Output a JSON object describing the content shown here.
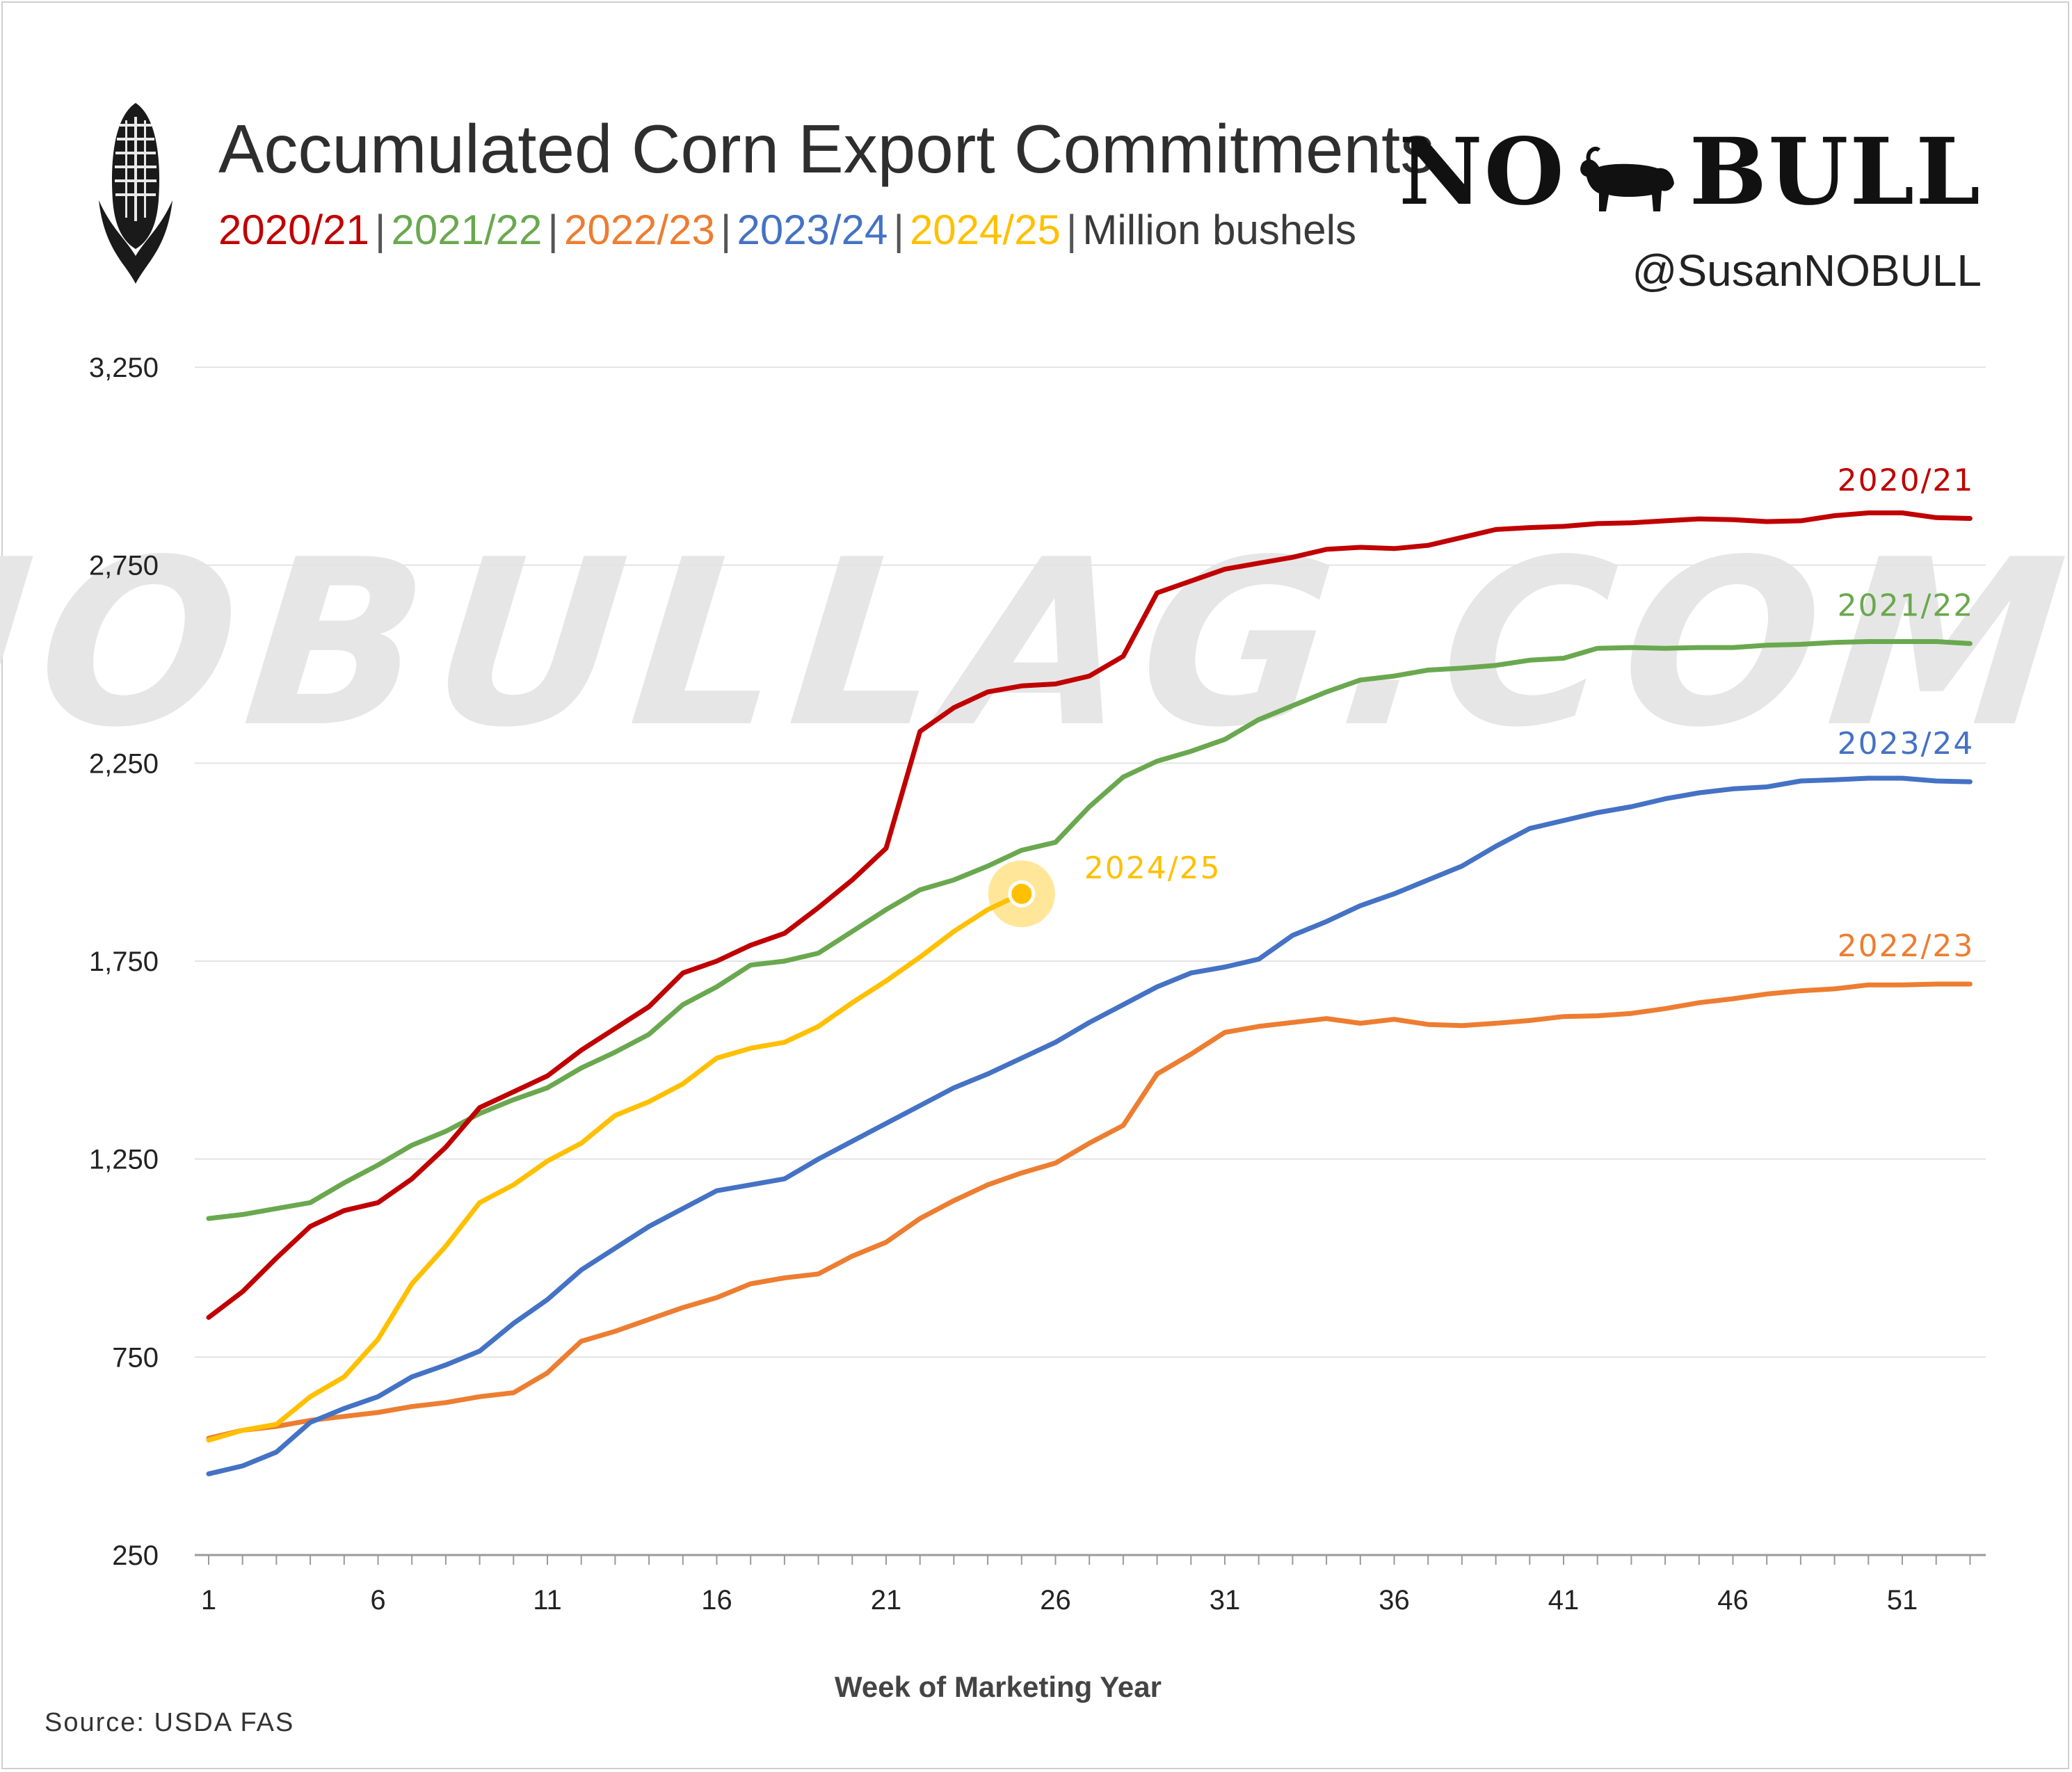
{
  "header": {
    "title": "Accumulated Corn Export Commitments",
    "subtitle_parts": [
      {
        "text": "2020/21",
        "color": "#c00000"
      },
      {
        "text": "2021/22",
        "color": "#6aa84f"
      },
      {
        "text": "2022/23",
        "color": "#ed7d31"
      },
      {
        "text": "2023/24",
        "color": "#4472c4"
      },
      {
        "text": "2024/25",
        "color": "#ffc000"
      }
    ],
    "units": "Million bushels",
    "separator": "|"
  },
  "brand": {
    "logo_text_left": "NO",
    "logo_text_right": "BULL",
    "handle": "@SusanNOBULL",
    "watermark": "NOBULLAG.COM"
  },
  "footer": {
    "source": "Source: USDA FAS"
  },
  "chart_data": {
    "type": "line",
    "xlabel": "Week of Marketing Year",
    "ylabel": "",
    "xlim": [
      1,
      53
    ],
    "ylim": [
      250,
      3250
    ],
    "yticks": [
      250,
      750,
      1250,
      1750,
      2250,
      2750,
      3250
    ],
    "ytick_labels": [
      "250",
      "750",
      "1,250",
      "1,750",
      "2,250",
      "2,750",
      "3,250"
    ],
    "xticks": [
      1,
      6,
      11,
      16,
      21,
      26,
      31,
      36,
      41,
      46,
      51
    ],
    "grid": true,
    "legend": "inline labels at line ends",
    "series": [
      {
        "name": "2020/21",
        "color": "#c00000",
        "label_week": 53,
        "values": [
          850,
          915,
          1000,
          1080,
          1120,
          1140,
          1200,
          1280,
          1380,
          1420,
          1460,
          1525,
          1580,
          1635,
          1720,
          1750,
          1790,
          1820,
          1885,
          1955,
          2035,
          2330,
          2390,
          2430,
          2445,
          2450,
          2470,
          2520,
          2680,
          2710,
          2740,
          2755,
          2770,
          2790,
          2795,
          2792,
          2800,
          2820,
          2840,
          2845,
          2848,
          2855,
          2857,
          2862,
          2867,
          2865,
          2860,
          2862,
          2875,
          2882,
          2882,
          2870,
          2868
        ]
      },
      {
        "name": "2021/22",
        "color": "#6aa84f",
        "label_week": 53,
        "values": [
          1100,
          1110,
          1125,
          1140,
          1190,
          1235,
          1285,
          1320,
          1365,
          1400,
          1430,
          1480,
          1520,
          1565,
          1640,
          1685,
          1740,
          1750,
          1770,
          1825,
          1880,
          1930,
          1955,
          1990,
          2030,
          2050,
          2140,
          2215,
          2255,
          2280,
          2310,
          2360,
          2395,
          2430,
          2460,
          2470,
          2485,
          2490,
          2497,
          2510,
          2515,
          2540,
          2542,
          2540,
          2542,
          2542,
          2548,
          2550,
          2555,
          2557,
          2557,
          2557,
          2552
        ]
      },
      {
        "name": "2022/23",
        "color": "#ed7d31",
        "label_week": 53,
        "values": [
          545,
          565,
          575,
          590,
          600,
          610,
          625,
          635,
          650,
          660,
          710,
          790,
          815,
          845,
          875,
          900,
          935,
          950,
          960,
          1005,
          1040,
          1100,
          1145,
          1185,
          1215,
          1240,
          1290,
          1335,
          1465,
          1515,
          1570,
          1585,
          1595,
          1605,
          1593,
          1603,
          1590,
          1587,
          1593,
          1600,
          1610,
          1612,
          1618,
          1630,
          1645,
          1655,
          1667,
          1675,
          1680,
          1690,
          1690,
          1692,
          1692
        ]
      },
      {
        "name": "2023/24",
        "color": "#4472c4",
        "label_week": 53,
        "values": [
          455,
          475,
          510,
          585,
          620,
          650,
          700,
          730,
          765,
          835,
          895,
          970,
          1025,
          1080,
          1125,
          1170,
          1185,
          1200,
          1250,
          1295,
          1340,
          1385,
          1430,
          1465,
          1505,
          1545,
          1595,
          1640,
          1685,
          1720,
          1735,
          1755,
          1815,
          1850,
          1890,
          1920,
          1955,
          1990,
          2040,
          2085,
          2105,
          2125,
          2140,
          2160,
          2175,
          2185,
          2190,
          2205,
          2208,
          2212,
          2212,
          2205,
          2203
        ]
      },
      {
        "name": "2024/25",
        "color": "#ffc000",
        "label_week": 25,
        "values": [
          540,
          565,
          580,
          650,
          700,
          795,
          935,
          1030,
          1140,
          1185,
          1245,
          1290,
          1360,
          1395,
          1440,
          1505,
          1530,
          1545,
          1585,
          1645,
          1700,
          1760,
          1825,
          1880,
          1920
        ]
      }
    ]
  }
}
